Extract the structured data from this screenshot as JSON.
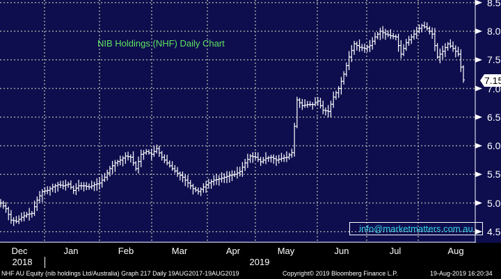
{
  "chart_data": {
    "type": "ohlc-bar",
    "title": "NIB Holdings (NHF) Daily Chart",
    "ylim": [
      4.4,
      8.6
    ],
    "y_ticks": [
      "8.50",
      "8.00",
      "7.50",
      "7.00",
      "6.50",
      "6.00",
      "5.50",
      "5.00",
      "4.50"
    ],
    "y_tick_values": [
      8.5,
      8.0,
      7.5,
      7.0,
      6.5,
      6.0,
      5.5,
      5.0,
      4.5
    ],
    "last_price_label": "7.15",
    "last_price": 7.15,
    "x_months": [
      "Dec",
      "Jan",
      "Feb",
      "Mar",
      "Apr",
      "May",
      "Jun",
      "Jul",
      "Aug"
    ],
    "x_years": [
      "2018",
      "2019"
    ],
    "closes": [
      5.0,
      4.9,
      4.7,
      4.68,
      4.75,
      4.8,
      4.82,
      5.05,
      5.2,
      5.22,
      5.28,
      5.32,
      5.3,
      5.33,
      5.22,
      5.3,
      5.3,
      5.28,
      5.32,
      5.35,
      5.45,
      5.6,
      5.7,
      5.75,
      5.82,
      5.8,
      5.6,
      5.85,
      5.9,
      5.85,
      5.95,
      5.8,
      5.7,
      5.6,
      5.52,
      5.45,
      5.35,
      5.25,
      5.2,
      5.28,
      5.35,
      5.4,
      5.42,
      5.45,
      5.48,
      5.5,
      5.55,
      5.7,
      5.82,
      5.8,
      5.72,
      5.78,
      5.8,
      5.75,
      5.78,
      5.8,
      5.88,
      6.8,
      6.7,
      6.72,
      6.72,
      6.78,
      6.62,
      6.6,
      6.85,
      7.0,
      7.25,
      7.55,
      7.78,
      7.72,
      7.7,
      7.75,
      7.9,
      8.0,
      7.95,
      7.92,
      7.9,
      7.6,
      7.8,
      7.9,
      8.0,
      8.1,
      8.05,
      7.95,
      7.55,
      7.65,
      7.78,
      7.7,
      7.6,
      7.15
    ],
    "watermark": "info@marketmatters.com.au"
  },
  "footer": {
    "security": "NHF AU Equity (nib holdings Ltd/Australia) Graph 217  Daily 19AUG2017-19AUG2019",
    "copyright": "Copyright© 2019 Bloomberg Finance L.P.",
    "timestamp": "19-Aug-2019 16:20:34"
  },
  "colors": {
    "background": "#0e0e4e",
    "bars": "#ffffff",
    "title": "#5fe35f",
    "watermark": "#37d6e8",
    "grid": "#a0a0a0"
  }
}
